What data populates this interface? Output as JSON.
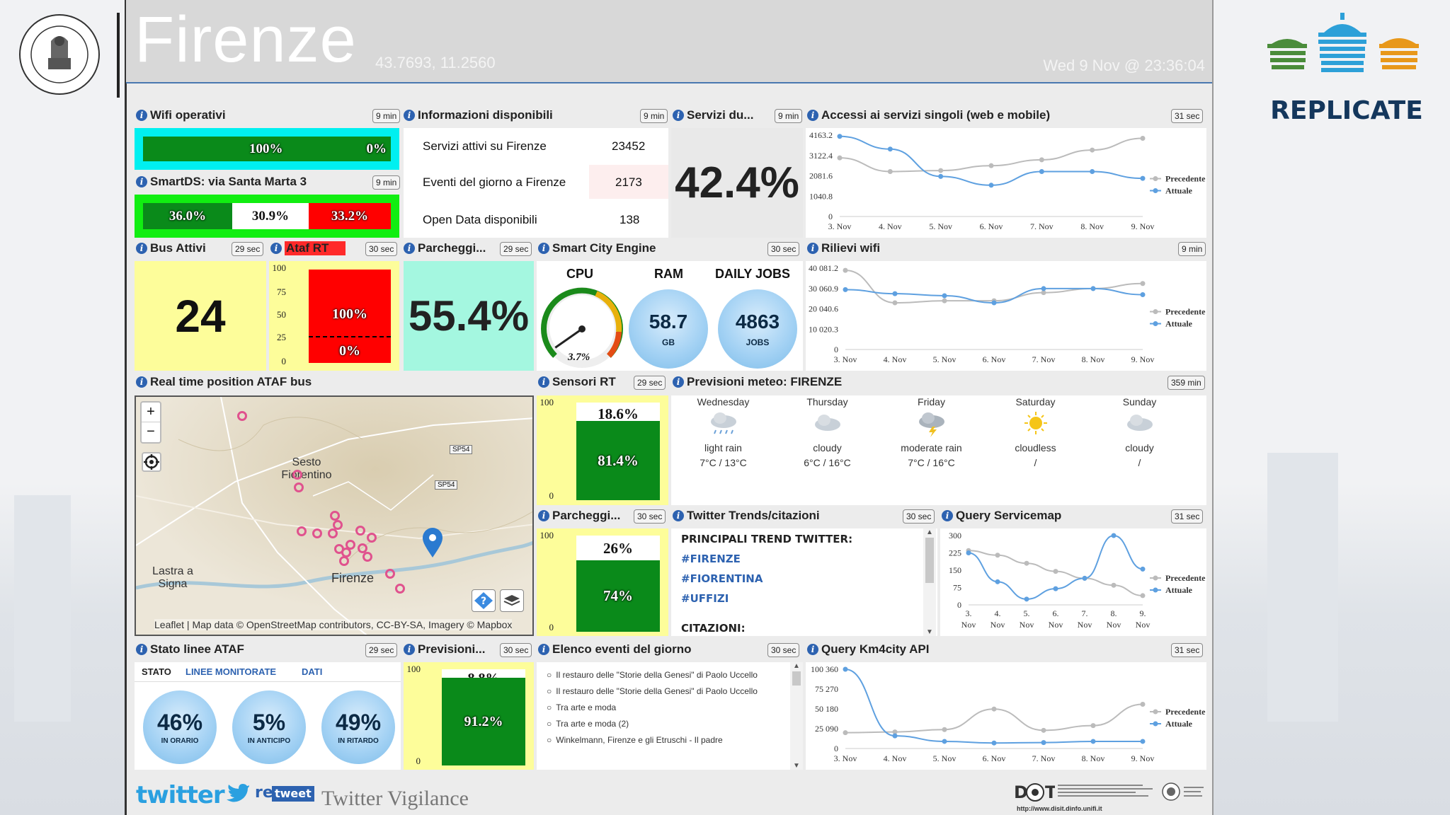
{
  "header": {
    "city": "Firenze",
    "coords": "43.7693, 11.2560",
    "datetime": "Wed 9 Nov @ 23:36:04"
  },
  "brand": {
    "project": "REPLICATE"
  },
  "widgets": {
    "wifi": {
      "title": "Wifi operativi",
      "badge": "9 min",
      "on": "100%",
      "off": "0%"
    },
    "smartds": {
      "title": "SmartDS: via Santa Marta 3",
      "badge": "9 min",
      "v1": "36.0%",
      "v2": "30.9%",
      "v3": "33.2%"
    },
    "info": {
      "title": "Informazioni disponibili",
      "badge": "9 min",
      "rows": [
        {
          "label": "Servizi attivi su Firenze",
          "value": "23452"
        },
        {
          "label": "Eventi del giorno a Firenze",
          "value": "2173"
        },
        {
          "label": "Open Data disponibili",
          "value": "138"
        }
      ]
    },
    "servizi": {
      "title": "Servizi du...",
      "badge": "9 min",
      "value": "42.4%"
    },
    "accessi": {
      "title": "Accessi ai servizi singoli (web e mobile)",
      "badge": "31 sec"
    },
    "bus": {
      "title": "Bus Attivi",
      "badge": "29 sec",
      "value": "24"
    },
    "ataf": {
      "title": "Ataf RT",
      "badge": "30 sec",
      "top": "100%",
      "bottom": "0%",
      "scale": [
        "100",
        "75",
        "50",
        "25",
        "0"
      ]
    },
    "parcheggi1": {
      "title": "Parcheggi...",
      "badge": "29 sec",
      "value": "55.4%"
    },
    "engine": {
      "title": "Smart City Engine",
      "badge": "30 sec",
      "cpu_label": "CPU",
      "ram_label": "RAM",
      "jobs_label": "DAILY JOBS",
      "cpu": "3.7%",
      "cpu_fraction": 0.037,
      "ram": "58.7",
      "ram_unit": "GB",
      "jobs": "4863",
      "jobs_unit": "JOBS"
    },
    "rilievi": {
      "title": "Rilievi wifi",
      "badge": "9 min"
    },
    "map": {
      "title": "Real time position ATAF bus",
      "zoom_in": "+",
      "zoom_out": "−",
      "places": [
        "Sesto Fiorentino",
        "Lastra a Signa",
        "Firenze"
      ],
      "roads": [
        "SP54",
        "SP54"
      ],
      "attribution": "Leaflet | Map data © OpenStreetMap contributors, CC-BY-SA, Imagery © Mapbox"
    },
    "sensori": {
      "title": "Sensori RT",
      "badge": "29 sec",
      "top": "18.6%",
      "bottom": "81.4%",
      "scale_top": "100",
      "scale_bottom": "0",
      "fraction": 0.814
    },
    "meteo": {
      "title": "Previsioni meteo: FIRENZE",
      "badge": "359 min",
      "days": [
        {
          "day": "Wednesday",
          "cond": "light rain",
          "temp": "7°C / 13°C",
          "icon": "rain-cloud-icon"
        },
        {
          "day": "Thursday",
          "cond": "cloudy",
          "temp": "6°C / 16°C",
          "icon": "cloud-icon"
        },
        {
          "day": "Friday",
          "cond": "moderate rain",
          "temp": "7°C / 16°C",
          "icon": "storm-cloud-icon"
        },
        {
          "day": "Saturday",
          "cond": "cloudless",
          "temp": "/",
          "icon": "sun-icon"
        },
        {
          "day": "Sunday",
          "cond": "cloudy",
          "temp": "/",
          "icon": "cloud-icon"
        }
      ]
    },
    "parcheggi2": {
      "title": "Parcheggi...",
      "badge": "30 sec",
      "top": "26%",
      "bottom": "74%",
      "scale_top": "100",
      "scale_bottom": "0",
      "fraction": 0.74
    },
    "twitter": {
      "title": "Twitter Trends/citazioni",
      "badge": "30 sec",
      "heading": "PRINCIPALI TREND TWITTER:",
      "trends": [
        "#FIRENZE",
        "#FIORENTINA",
        "#UFFIZI"
      ],
      "citazioni": "CITAZIONI:"
    },
    "servicemap": {
      "title": "Query Servicemap",
      "badge": "31 sec"
    },
    "stato": {
      "title": "Stato linee ATAF",
      "badge": "29 sec",
      "tabs": [
        "STATO",
        "LINEE MONITORATE",
        "DATI"
      ],
      "items": [
        {
          "value": "46%",
          "label": "IN ORARIO"
        },
        {
          "value": "5%",
          "label": "IN ANTICIPO"
        },
        {
          "value": "49%",
          "label": "IN RITARDO"
        }
      ]
    },
    "previsioni": {
      "title": "Previsioni...",
      "badge": "30 sec",
      "top": "8.8%",
      "bottom": "91.2%",
      "scale_top": "100",
      "scale_bottom": "0",
      "fraction": 0.912
    },
    "eventi": {
      "title": "Elenco eventi del giorno",
      "badge": "30 sec",
      "items": [
        "Il restauro delle \"Storie della Genesi\" di Paolo Uccello",
        "Il restauro delle \"Storie della Genesi\" di Paolo Uccello",
        "Tra arte e moda",
        "Tra arte e moda (2)",
        "Winkelmann, Firenze e gli Etruschi - Il padre"
      ]
    },
    "km4city": {
      "title": "Query Km4city API",
      "badge": "31 sec"
    }
  },
  "footer": {
    "twitter": "twitter",
    "retweet_re": "re",
    "retweet_tweet": "tweet",
    "vigilance": "Twitter Vigilance",
    "disit_url": "http://www.disit.dinfo.unifi.it"
  },
  "chart_data": [
    {
      "id": "accessi",
      "type": "line",
      "categories": [
        "3. Nov",
        "4. Nov",
        "5. Nov",
        "6. Nov",
        "7. Nov",
        "8. Nov",
        "9. Nov"
      ],
      "yticks": [
        "4163.2",
        "3122.4",
        "2081.6",
        "1040.8",
        "0"
      ],
      "ylim": [
        0,
        4163.2
      ],
      "series": [
        {
          "name": "Precedente",
          "values": [
            3000,
            2300,
            2350,
            2600,
            2900,
            3400,
            4000
          ]
        },
        {
          "name": "Attuale",
          "values": [
            4100,
            3450,
            2050,
            1600,
            2300,
            2300,
            1950
          ]
        }
      ],
      "legend": "right"
    },
    {
      "id": "rilievi",
      "type": "line",
      "categories": [
        "3. Nov",
        "4. Nov",
        "5. Nov",
        "6. Nov",
        "7. Nov",
        "8. Nov",
        "9. Nov"
      ],
      "yticks": [
        "40 081.2",
        "30 060.9",
        "20 040.6",
        "10 020.3",
        "0"
      ],
      "ylim": [
        0,
        40081.2
      ],
      "series": [
        {
          "name": "Precedente",
          "values": [
            39000,
            23000,
            24000,
            24000,
            28000,
            30000,
            32500
          ]
        },
        {
          "name": "Attuale",
          "values": [
            29500,
            27500,
            26500,
            23000,
            30000,
            30000,
            27000
          ]
        }
      ],
      "legend": "right"
    },
    {
      "id": "servicemap",
      "type": "line",
      "categories": [
        "3. Nov",
        "4. Nov",
        "5. Nov",
        "6. Nov",
        "7. Nov",
        "8. Nov",
        "9. Nov"
      ],
      "yticks": [
        "300",
        "225",
        "150",
        "75",
        "0"
      ],
      "ylim": [
        0,
        300
      ],
      "series": [
        {
          "name": "Precedente",
          "values": [
            235,
            215,
            180,
            145,
            115,
            85,
            40
          ]
        },
        {
          "name": "Attuale",
          "values": [
            225,
            100,
            25,
            70,
            115,
            300,
            155
          ]
        }
      ],
      "legend": "right"
    },
    {
      "id": "km4city",
      "type": "line",
      "categories": [
        "3. Nov",
        "4. Nov",
        "5. Nov",
        "6. Nov",
        "7. Nov",
        "8. Nov",
        "9. Nov"
      ],
      "yticks": [
        "100 360",
        "75 270",
        "50 180",
        "25 090",
        "0"
      ],
      "ylim": [
        0,
        100360
      ],
      "series": [
        {
          "name": "Precedente",
          "values": [
            20000,
            21000,
            24000,
            50000,
            23000,
            29000,
            56000
          ]
        },
        {
          "name": "Attuale",
          "values": [
            100360,
            16000,
            9000,
            7000,
            7500,
            9000,
            9000
          ]
        }
      ],
      "legend": "right"
    }
  ],
  "colors": {
    "accent": "#2d62b0",
    "green": "#0a8a1a",
    "red": "#ff0000",
    "cyan": "#00f0f0",
    "yellow": "#fdfd9a",
    "mint": "#a4f7e0",
    "prev": "#bbbbbb",
    "curr": "#5ea0e0"
  }
}
